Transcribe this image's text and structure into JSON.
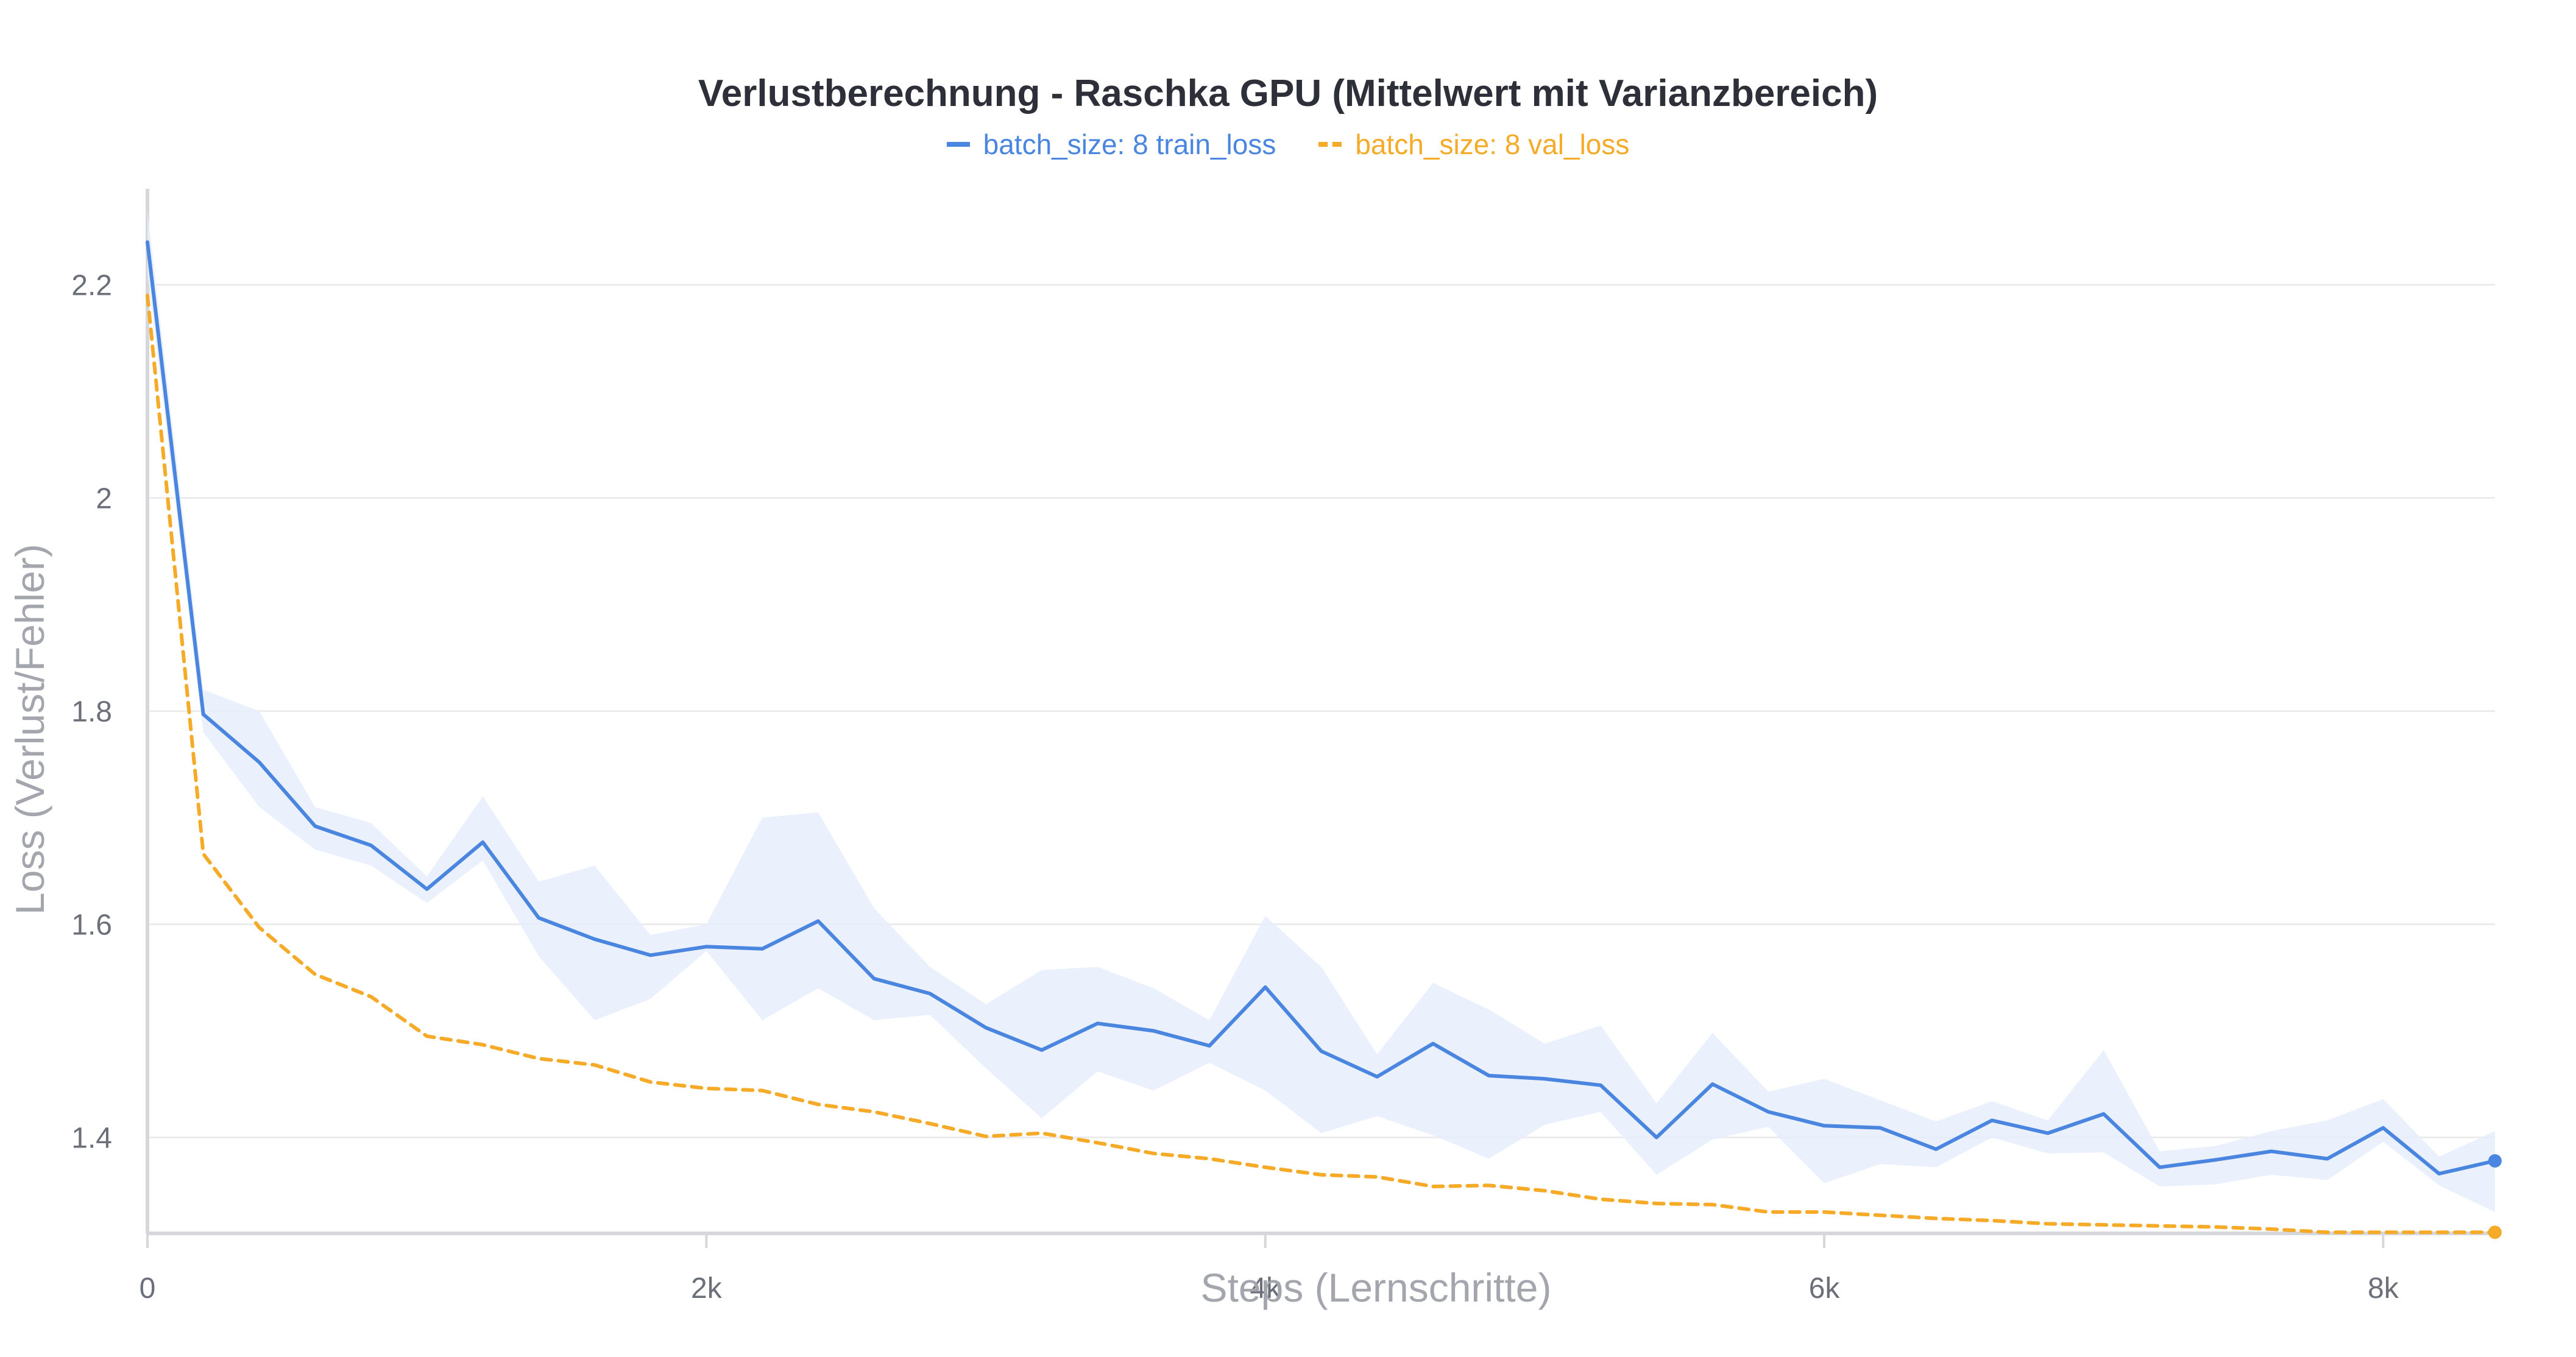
{
  "chart_data": {
    "type": "line",
    "title": "Verlustberechnung - Raschka GPU (Mittelwert mit Varianzbereich)",
    "xlabel": "Steps (Lernschritte)",
    "ylabel": "Loss (Verlust/Fehler)",
    "xlim": [
      0,
      8400
    ],
    "ylim": [
      1.31,
      2.29
    ],
    "xticks": [
      0,
      2000,
      4000,
      6000,
      8000
    ],
    "xtick_labels": [
      "0",
      "2k",
      "4k",
      "6k",
      "8k"
    ],
    "yticks": [
      1.4,
      1.6,
      1.8,
      2.0,
      2.2
    ],
    "ytick_labels": [
      "1.4",
      "1.6",
      "1.8",
      "2",
      "2.2"
    ],
    "grid": true,
    "legend_position": "top-center",
    "series": [
      {
        "name": "batch_size: 8 train_loss",
        "color": "#4a86e0",
        "style": "solid",
        "band_color": "#e6effc",
        "x": [
          0,
          200,
          400,
          600,
          800,
          1000,
          1200,
          1400,
          1600,
          1800,
          2000,
          2200,
          2400,
          2600,
          2800,
          3000,
          3200,
          3400,
          3600,
          3800,
          4000,
          4200,
          4400,
          4600,
          4800,
          5000,
          5200,
          5400,
          5600,
          5800,
          6000,
          6200,
          6400,
          6600,
          6800,
          7000,
          7200,
          7400,
          7600,
          7800,
          8000,
          8200,
          8400
        ],
        "values": [
          2.24,
          1.797,
          1.752,
          1.692,
          1.674,
          1.633,
          1.677,
          1.606,
          1.586,
          1.571,
          1.579,
          1.577,
          1.603,
          1.549,
          1.535,
          1.503,
          1.482,
          1.507,
          1.5,
          1.486,
          1.541,
          1.481,
          1.457,
          1.488,
          1.458,
          1.455,
          1.449,
          1.4,
          1.45,
          1.424,
          1.411,
          1.409,
          1.389,
          1.416,
          1.404,
          1.422,
          1.372,
          1.379,
          1.387,
          1.38,
          1.409,
          1.366,
          1.378
        ],
        "upper": [
          2.27,
          1.82,
          1.8,
          1.71,
          1.695,
          1.645,
          1.72,
          1.64,
          1.655,
          1.59,
          1.6,
          1.7,
          1.705,
          1.615,
          1.56,
          1.525,
          1.557,
          1.56,
          1.54,
          1.51,
          1.608,
          1.56,
          1.478,
          1.545,
          1.52,
          1.488,
          1.505,
          1.432,
          1.498,
          1.443,
          1.455,
          1.435,
          1.415,
          1.434,
          1.416,
          1.482,
          1.387,
          1.392,
          1.406,
          1.416,
          1.436,
          1.382,
          1.406
        ],
        "lower": [
          2.21,
          1.78,
          1.71,
          1.67,
          1.655,
          1.62,
          1.66,
          1.57,
          1.51,
          1.53,
          1.575,
          1.51,
          1.54,
          1.51,
          1.515,
          1.465,
          1.418,
          1.462,
          1.444,
          1.47,
          1.444,
          1.404,
          1.42,
          1.402,
          1.38,
          1.412,
          1.424,
          1.365,
          1.398,
          1.41,
          1.357,
          1.375,
          1.372,
          1.4,
          1.385,
          1.386,
          1.354,
          1.356,
          1.365,
          1.36,
          1.396,
          1.355,
          1.33
        ]
      },
      {
        "name": "batch_size: 8 val_loss",
        "color": "#f5aa28",
        "style": "dashed",
        "band_color": "#fdf0d5",
        "x": [
          0,
          200,
          400,
          600,
          800,
          1000,
          1200,
          1400,
          1600,
          1800,
          2000,
          2200,
          2400,
          2600,
          2800,
          3000,
          3200,
          3400,
          3600,
          3800,
          4000,
          4200,
          4400,
          4600,
          4800,
          5000,
          5200,
          5400,
          5600,
          5800,
          6000,
          6200,
          6400,
          6600,
          6800,
          7000,
          7200,
          7400,
          7600,
          7800,
          8000,
          8200,
          8400
        ],
        "values": [
          2.19,
          1.666,
          1.597,
          1.553,
          1.532,
          1.495,
          1.487,
          1.474,
          1.468,
          1.452,
          1.446,
          1.444,
          1.431,
          1.424,
          1.413,
          1.401,
          1.404,
          1.395,
          1.385,
          1.38,
          1.372,
          1.365,
          1.363,
          1.354,
          1.355,
          1.35,
          1.342,
          1.338,
          1.337,
          1.33,
          1.33,
          1.327,
          1.324,
          1.322,
          1.319,
          1.318,
          1.317,
          1.316,
          1.314,
          1.311,
          1.311,
          1.311,
          1.311
        ]
      }
    ]
  }
}
